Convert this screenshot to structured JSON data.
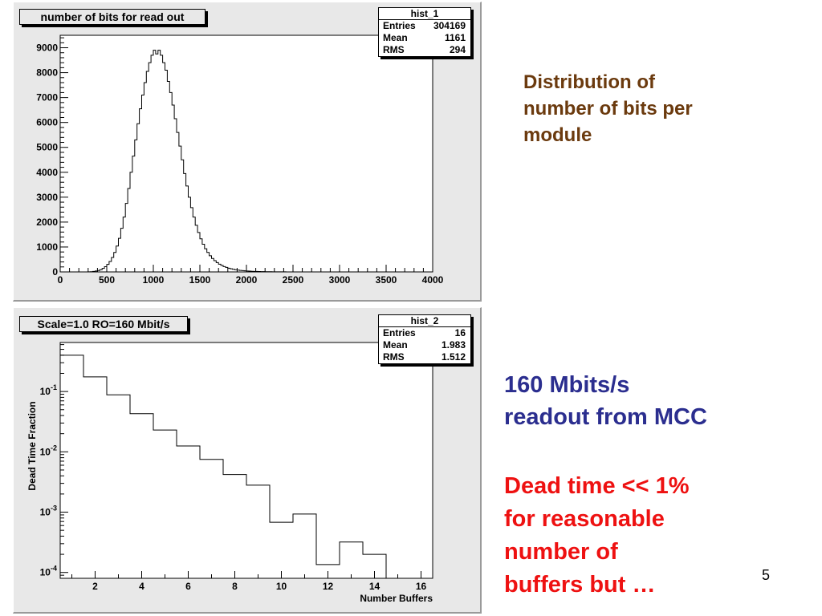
{
  "chart_data": [
    {
      "type": "histogram",
      "title": "number of bits for read out",
      "xlabel": "",
      "ylabel": "",
      "xlim": [
        0,
        4000
      ],
      "ylim": [
        0,
        9500
      ],
      "xticks": [
        "0",
        "500",
        "1000",
        "1500",
        "2000",
        "2500",
        "3000",
        "3500",
        "4000"
      ],
      "yticks": [
        "0",
        "1000",
        "2000",
        "3000",
        "4000",
        "5000",
        "6000",
        "7000",
        "8000",
        "9000"
      ],
      "grid": false,
      "bin_width": 25,
      "bin_start": 300,
      "values": [
        5,
        10,
        20,
        35,
        55,
        90,
        140,
        210,
        300,
        420,
        580,
        780,
        1040,
        1350,
        1750,
        2200,
        2750,
        3350,
        4000,
        4650,
        5300,
        5950,
        6550,
        7100,
        7600,
        8050,
        8400,
        8700,
        8900,
        8750,
        8900,
        8700,
        8400,
        8100,
        7650,
        7200,
        6700,
        6150,
        5600,
        5050,
        4500,
        3950,
        3450,
        3000,
        2580,
        2200,
        1870,
        1580,
        1330,
        1110,
        930,
        780,
        650,
        540,
        450,
        375,
        310,
        260,
        215,
        180,
        150,
        125,
        105,
        88,
        74,
        62,
        52,
        44,
        37,
        31,
        26,
        22,
        19,
        16,
        13,
        11,
        9,
        8,
        7,
        6,
        5,
        4,
        4,
        3,
        3,
        2,
        2,
        2,
        1,
        1,
        1,
        1,
        0,
        0,
        0,
        0,
        0,
        0,
        0,
        0
      ],
      "stats": {
        "name": "hist_1",
        "entries_label": "Entries",
        "entries": "304169",
        "mean_label": "Mean",
        "mean": "1161",
        "rms_label": "RMS",
        "rms": "294"
      }
    },
    {
      "type": "histogram",
      "title": "Scale=1.0 RO=160 Mbit/s",
      "xlabel": "Number Buffers",
      "ylabel": "Dead Time Fraction",
      "xlim": [
        0.5,
        16.5
      ],
      "ylim": [
        8e-05,
        0.65
      ],
      "yscale": "log",
      "xticks": [
        "2",
        "4",
        "6",
        "8",
        "10",
        "12",
        "14",
        "16"
      ],
      "grid": false,
      "x": [
        1,
        2,
        3,
        4,
        5,
        6,
        7,
        8,
        9,
        10,
        11,
        12,
        13,
        14,
        15,
        16
      ],
      "values": [
        0.4,
        0.175,
        0.088,
        0.043,
        0.023,
        0.0125,
        0.0075,
        0.0042,
        0.0028,
        0.00068,
        0.00093,
        0.000135,
        0.00032,
        0.0002,
        0,
        0
      ],
      "stats": {
        "name": "hist_2",
        "entries_label": "Entries",
        "entries": "16",
        "mean_label": "Mean",
        "mean": "1.983",
        "rms_label": "RMS",
        "rms": "1.512"
      }
    }
  ],
  "text1": [
    "Distribution of",
    "number of bits per",
    "module"
  ],
  "text2": [
    "160 Mbits/s",
    "readout from MCC"
  ],
  "text3": [
    "Dead time << 1%",
    "for reasonable",
    "number of",
    "buffers but …"
  ],
  "page_number": "5"
}
